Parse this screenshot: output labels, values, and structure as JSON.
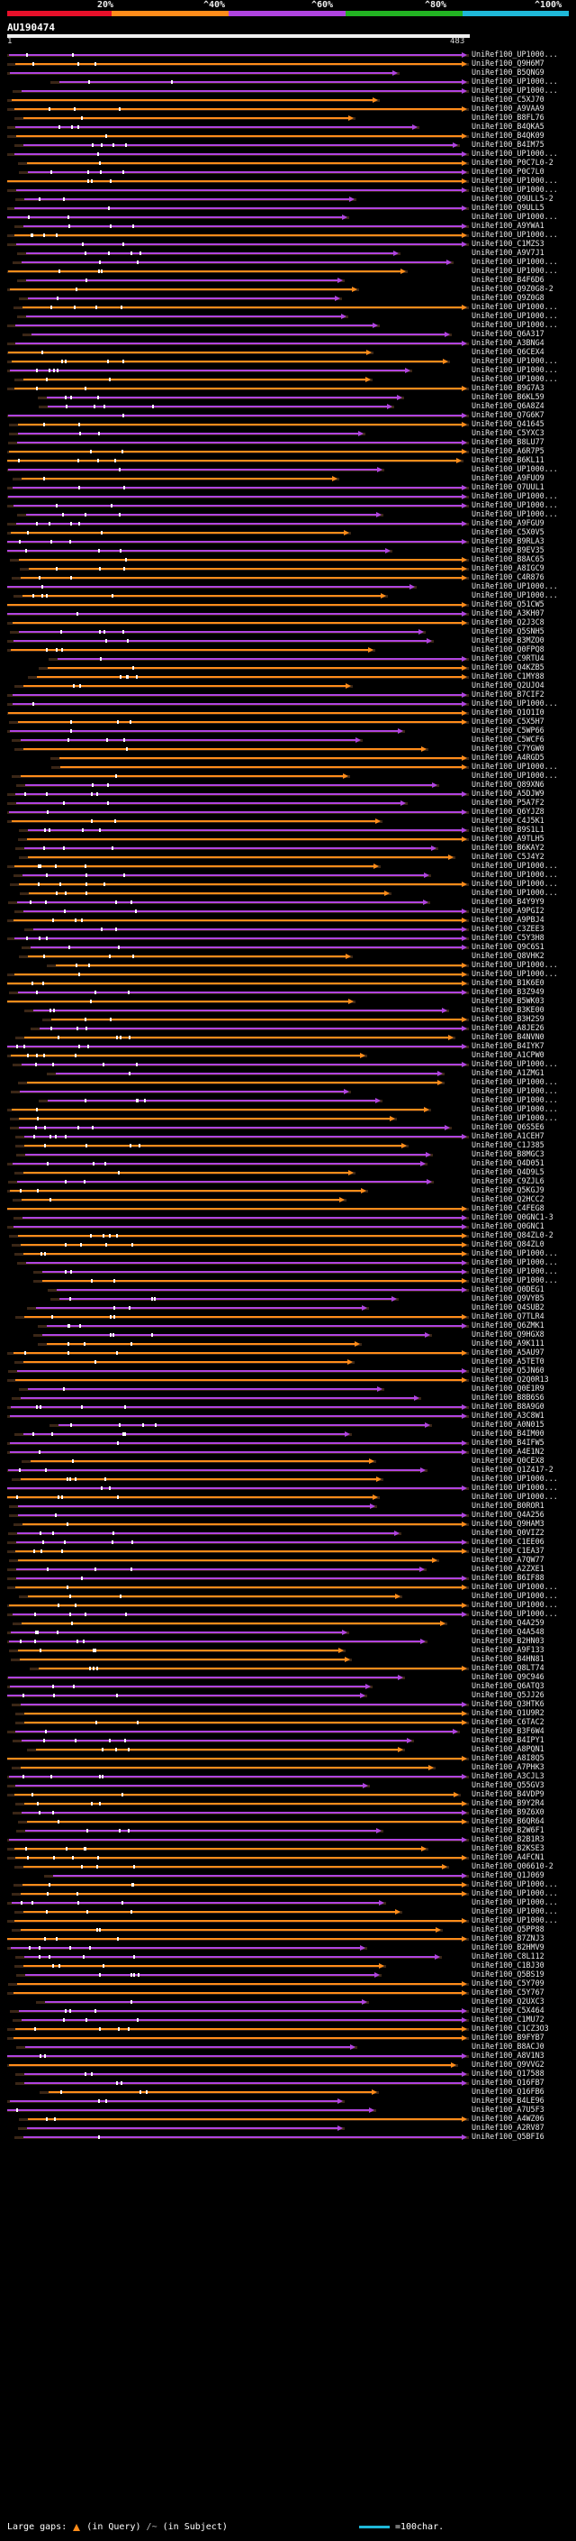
{
  "legend": {
    "ticks": [
      "20%",
      "^40%",
      "^60%",
      "^80%",
      "^100%"
    ],
    "colors": [
      "#e8102a",
      "#ff8c1a",
      "#b044e0",
      "#22b322",
      "#1fb8d8"
    ]
  },
  "query": {
    "name": "AU190474",
    "start": "1",
    "end": "483"
  },
  "colors": {
    "orange": "#ff8c1a",
    "purple": "#b044e0",
    "pink": "#c86ae8",
    "gap": "#ffffff",
    "faint": "#3a2616"
  },
  "hits": [
    "UniRef100_UP1000...",
    "UniRef100_Q9H6M7",
    "UniRef100_B5QNG9",
    "UniRef100_UP1000...",
    "UniRef100_UP1000...",
    "UniRef100_C5XJ70",
    "UniRef100_A9VAA9",
    "UniRef100_B8FL76",
    "UniRef100_B4QKA5",
    "UniRef100_B4QK09",
    "UniRef100_B4IM75",
    "UniRef100_UP1000...",
    "UniRef100_P0C7L0-2",
    "UniRef100_P0C7L0",
    "UniRef100_UP1000...",
    "UniRef100_UP1000...",
    "UniRef100_Q9ULL5-2",
    "UniRef100_Q9ULL5",
    "UniRef100_UP1000...",
    "UniRef100_A9YWA1",
    "UniRef100_UP1000...",
    "UniRef100_C1MZS3",
    "UniRef100_A9V7J1",
    "UniRef100_UP1000...",
    "UniRef100_UP1000...",
    "UniRef100_B4F6D6",
    "UniRef100_Q9Z0G8-2",
    "UniRef100_Q9Z0G8",
    "UniRef100_UP1000...",
    "UniRef100_UP1000...",
    "UniRef100_UP1000...",
    "UniRef100_Q6A317",
    "UniRef100_A3BNG4",
    "UniRef100_Q6CEX4",
    "UniRef100_UP1000...",
    "UniRef100_UP1000...",
    "UniRef100_UP1000...",
    "UniRef100_B9G7A3",
    "UniRef100_B6KL59",
    "UniRef100_Q6A8Z4",
    "UniRef100_Q7G6K7",
    "UniRef100_Q41645",
    "UniRef100_C5YXC3",
    "UniRef100_B8LU77",
    "UniRef100_A6R7P5",
    "UniRef100_B6KL11",
    "UniRef100_UP1000...",
    "UniRef100_A9FUO9",
    "UniRef100_Q7UUL1",
    "UniRef100_UP1000...",
    "UniRef100_UP1000...",
    "UniRef100_UP1000...",
    "UniRef100_A9FGU9",
    "UniRef100_C5X0V5",
    "UniRef100_B9RLA3",
    "UniRef100_B9EV35",
    "UniRef100_B8AC65",
    "UniRef100_A8IGC9",
    "UniRef100_C4R876",
    "UniRef100_UP1000...",
    "UniRef100_UP1000...",
    "UniRef100_Q51CW5",
    "UniRef100_A3KH07",
    "UniRef100_Q2J3C8",
    "UniRef100_Q5SNH5",
    "UniRef100_B3MZO0",
    "UniRef100_Q0FPQ8",
    "UniRef100_C9RTU4",
    "UniRef100_Q4KZB5",
    "UniRef100_C1MY88",
    "UniRef100_Q2UJO4",
    "UniRef100_B7CIF2",
    "UniRef100_UP1000...",
    "UniRef100_Q1O1I0",
    "UniRef100_C5X5H7",
    "UniRef100_C5WP66",
    "UniRef100_C5WCF6",
    "UniRef100_C7YGW0",
    "UniRef100_A4RGD5",
    "UniRef100_UP1000...",
    "UniRef100_UP1000...",
    "UniRef100_Q89XN6",
    "UniRef100_A5DJW9",
    "UniRef100_P5A7F2",
    "UniRef100_Q6YJZ8",
    "UniRef100_C4J5K1",
    "UniRef100_B9S1L1",
    "UniRef100_A9TLH5",
    "UniRef100_B6KAY2",
    "UniRef100_C5J4Y2",
    "UniRef100_UP1000...",
    "UniRef100_UP1000...",
    "UniRef100_UP1000...",
    "UniRef100_UP1000...",
    "UniRef100_B4Y9Y9",
    "UniRef100_A9PGI2",
    "UniRef100_A9PBJ4",
    "UniRef100_C3ZEE3",
    "UniRef100_C5Y3H8",
    "UniRef100_Q9C6S1",
    "UniRef100_Q8VHK2",
    "UniRef100_UP1000...",
    "UniRef100_UP1000...",
    "UniRef100_B1K6E0",
    "UniRef100_B3Z949",
    "UniRef100_B5WK03",
    "UniRef100_B3KE00",
    "UniRef100_B3H2S9",
    "UniRef100_A8JE26",
    "UniRef100_B4NVN0",
    "UniRef100_B4IYK7",
    "UniRef100_A1CPW0",
    "UniRef100_UP1000...",
    "UniRef100_A1ZMG1",
    "UniRef100_UP1000...",
    "UniRef100_UP1000...",
    "UniRef100_UP1000...",
    "UniRef100_UP1000...",
    "UniRef100_UP1000...",
    "UniRef100_Q6S5E6",
    "UniRef100_A1CEH7",
    "UniRef100_C1J385",
    "UniRef100_B8MGC3",
    "UniRef100_Q4D051",
    "UniRef100_Q4D9L5",
    "UniRef100_C9ZJL6",
    "UniRef100_Q5KGJ9",
    "UniRef100_Q2HCC2",
    "UniRef100_C4FEG8",
    "UniRef100_Q0GNC1-3",
    "UniRef100_Q0GNC1",
    "UniRef100_Q84ZL0-2",
    "UniRef100_Q84ZL0",
    "UniRef100_UP1000...",
    "UniRef100_UP1000...",
    "UniRef100_UP1000...",
    "UniRef100_UP1000...",
    "UniRef100_Q0DEG1",
    "UniRef100_Q9VYB5",
    "UniRef100_Q4SUB2",
    "UniRef100_Q7TLR4",
    "UniRef100_Q6ZMK1",
    "UniRef100_Q9HGX8",
    "UniRef100_A9K111",
    "UniRef100_A5AU97",
    "UniRef100_A5TET0",
    "UniRef100_Q5JN60",
    "UniRef100_Q2Q0R13",
    "UniRef100_Q0E1R9",
    "UniRef100_B8B6S6",
    "UniRef100_B8A9G0",
    "UniRef100_A3C8W1",
    "UniRef100_A0N015",
    "UniRef100_B4IM00",
    "UniRef100_B4IFW5",
    "UniRef100_A4E1N2",
    "UniRef100_Q0CEX8",
    "UniRef100_Q1Z417-2",
    "UniRef100_UP1000...",
    "UniRef100_UP1000...",
    "UniRef100_UP1000...",
    "UniRef100_B0ROR1",
    "UniRef100_Q4A256",
    "UniRef100_Q9HAM3",
    "UniRef100_Q0VIZ2",
    "UniRef100_C1EE06",
    "UniRef100_C1EA37",
    "UniRef100_A7QW77",
    "UniRef100_A2ZXE1",
    "UniRef100_B6IF88",
    "UniRef100_UP1000...",
    "UniRef100_UP1000...",
    "UniRef100_UP1000...",
    "UniRef100_UP1000...",
    "UniRef100_Q4A259",
    "UniRef100_Q4A548",
    "UniRef100_B2HN03",
    "UniRef100_A9F133",
    "UniRef100_B4HN81",
    "UniRef100_Q8LT74",
    "UniRef100_Q9C946",
    "UniRef100_Q6ATQ3",
    "UniRef100_Q5JJ26",
    "UniRef100_Q3HTK6",
    "UniRef100_Q1U9R2",
    "UniRef100_C6TAC2",
    "UniRef100_B3F6W4",
    "UniRef100_B4IPY1",
    "UniRef100_A8PQN1",
    "UniRef100_A8I8Q5",
    "UniRef100_A7PHK3",
    "UniRef100_A3CJL3",
    "UniRef100_Q55GV3",
    "UniRef100_B4VDP9",
    "UniRef100_B9Y2R4",
    "UniRef100_B9Z6X0",
    "UniRef100_B6QR64",
    "UniRef100_B2W6F1",
    "UniRef100_B2B1R3",
    "UniRef100_B2KSE3",
    "UniRef100_A4FCN1",
    "UniRef100_Q06610-2",
    "UniRef100_Q1J069",
    "UniRef100_UP1000...",
    "UniRef100_UP1000...",
    "UniRef100_UP1000...",
    "UniRef100_UP1000...",
    "UniRef100_UP1000...",
    "UniRef100_Q5PP88",
    "UniRef100_B7ZNJ3",
    "UniRef100_B2HMV9",
    "UniRef100_C8L112",
    "UniRef100_C1BJ30",
    "UniRef100_Q5BS19",
    "UniRef100_C5Y709",
    "UniRef100_C5Y767",
    "UniRef100_Q2UXC3",
    "UniRef100_C5X464",
    "UniRef100_C1MU72",
    "UniRef100_C1CZ3O3",
    "UniRef100_B9FYB7",
    "UniRef100_B8ACJ0",
    "UniRef100_A8V1N3",
    "UniRef100_Q9VVG2",
    "UniRef100_Q17588",
    "UniRef100_Q16FB7",
    "UniRef100_Q16FB6",
    "UniRef100_B4LE96",
    "UniRef100_A7U5F3",
    "UniRef100_A4WZ06",
    "UniRef100_A2RV87",
    "UniRef100_Q5BFI6"
  ],
  "footer": {
    "large_gaps_label": "Large gaps:",
    "in_query_label": "(in Query)",
    "in_subject_label": "(in Subject)",
    "scale_label": "=100char."
  }
}
